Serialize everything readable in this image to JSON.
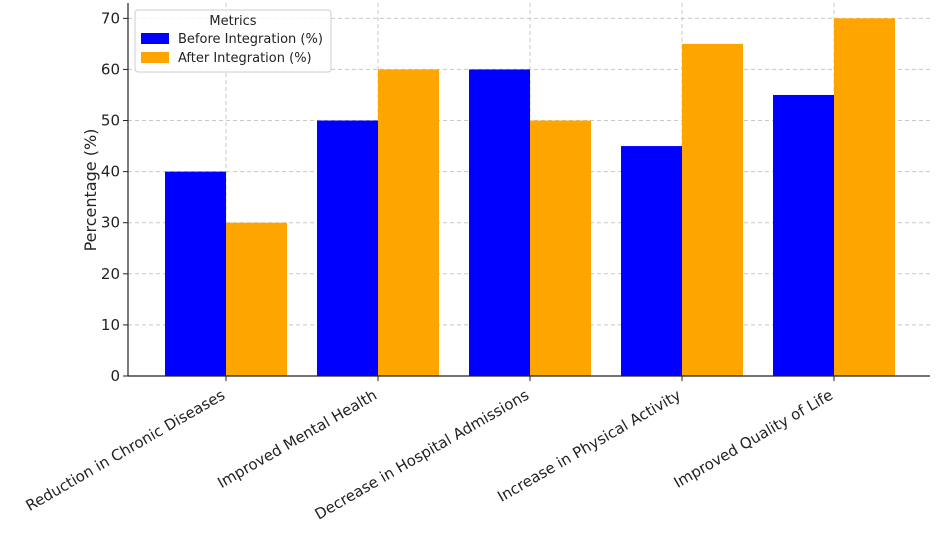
{
  "chart_data": {
    "type": "bar",
    "title": "",
    "xlabel": "",
    "ylabel": "Percentage (%)",
    "ylim": [
      0,
      73
    ],
    "yticks": [
      0,
      10,
      20,
      30,
      40,
      50,
      60,
      70
    ],
    "categories": [
      "Reduction in Chronic Diseases",
      "Improved Mental Health",
      "Decrease in Hospital Admissions",
      "Increase in Physical Activity",
      "Improved Quality of Life"
    ],
    "series": [
      {
        "name": "Before Integration (%)",
        "color": "#0000ff",
        "values": [
          40,
          50,
          60,
          45,
          55
        ]
      },
      {
        "name": "After Integration (%)",
        "color": "#ffa500",
        "values": [
          30,
          60,
          50,
          65,
          70
        ]
      }
    ],
    "legend": {
      "title": "Metrics",
      "position": "top-left"
    },
    "grid": true
  }
}
